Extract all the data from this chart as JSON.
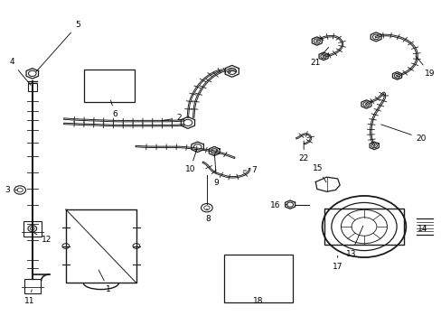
{
  "background_color": "#ffffff",
  "line_color": "#1a1a1a",
  "gray_color": "#888888",
  "figsize": [
    4.89,
    3.6
  ],
  "dpi": 100,
  "parts_labels": {
    "1": [
      0.245,
      0.108,
      0.21,
      0.085
    ],
    "2": [
      0.425,
      0.618,
      0.405,
      0.638
    ],
    "3": [
      0.035,
      0.415,
      0.016,
      0.415
    ],
    "4": [
      0.045,
      0.81,
      0.025,
      0.81
    ],
    "5": [
      0.175,
      0.925,
      0.195,
      0.925
    ],
    "6": [
      0.26,
      0.665,
      0.26,
      0.648
    ],
    "7": [
      0.555,
      0.475,
      0.575,
      0.475
    ],
    "8": [
      0.47,
      0.345,
      0.47,
      0.325
    ],
    "9": [
      0.49,
      0.458,
      0.49,
      0.438
    ],
    "10": [
      0.445,
      0.462,
      0.43,
      0.478
    ],
    "11": [
      0.065,
      0.09,
      0.065,
      0.072
    ],
    "12": [
      0.085,
      0.278,
      0.105,
      0.262
    ],
    "13": [
      0.795,
      0.235,
      0.795,
      0.218
    ],
    "14": [
      0.945,
      0.31,
      0.958,
      0.295
    ],
    "15": [
      0.72,
      0.465,
      0.72,
      0.482
    ],
    "16": [
      0.645,
      0.368,
      0.624,
      0.368
    ],
    "17": [
      0.765,
      0.195,
      0.765,
      0.178
    ],
    "18": [
      0.585,
      0.09,
      0.585,
      0.072
    ],
    "19": [
      0.955,
      0.775,
      0.975,
      0.775
    ],
    "20": [
      0.935,
      0.575,
      0.955,
      0.575
    ],
    "21": [
      0.73,
      0.808,
      0.714,
      0.808
    ],
    "22": [
      0.688,
      0.528,
      0.688,
      0.512
    ]
  }
}
